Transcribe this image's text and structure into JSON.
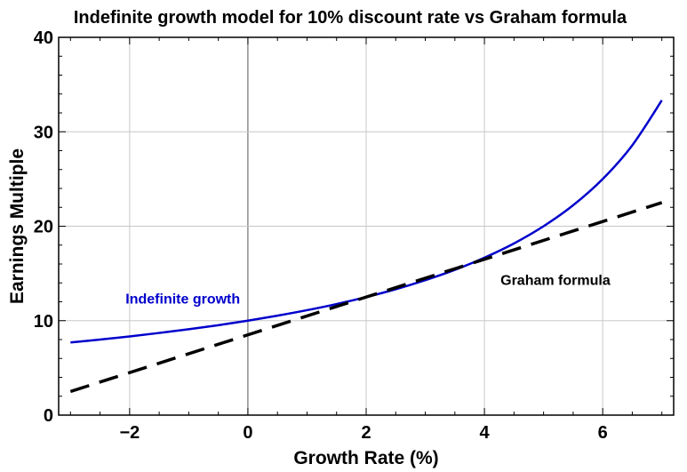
{
  "chart_data": {
    "type": "line",
    "title": "Indefinite growth model for 10% discount rate vs Graham formula",
    "xlabel": "Growth Rate (%)",
    "ylabel": "Earnings Multiple",
    "xlim": [
      -3.2,
      7.2
    ],
    "ylim": [
      0,
      40
    ],
    "x_major_ticks": [
      -2,
      0,
      2,
      4,
      6
    ],
    "y_major_ticks": [
      0,
      10,
      20,
      30,
      40
    ],
    "x_minor_step": 0.5,
    "y_minor_step": 2,
    "grid": true,
    "series": [
      {
        "name": "Indefinite growth",
        "color": "#0000cc",
        "style": "solid",
        "x": [
          -3,
          -2.5,
          -2,
          -1.5,
          -1,
          -0.5,
          0,
          0.5,
          1,
          1.5,
          2,
          2.5,
          3,
          3.5,
          4,
          4.5,
          5,
          5.5,
          6,
          6.5,
          7
        ],
        "values": [
          7.69,
          8.0,
          8.33,
          8.7,
          9.09,
          9.52,
          10.0,
          10.53,
          11.11,
          11.76,
          12.5,
          13.33,
          14.29,
          15.38,
          16.67,
          18.18,
          20.0,
          22.22,
          25.0,
          28.57,
          33.33
        ]
      },
      {
        "name": "Graham formula",
        "color": "#000000",
        "style": "dashed",
        "x": [
          -3,
          7
        ],
        "values": [
          2.5,
          22.5
        ]
      }
    ],
    "annotations": [
      {
        "text": "Indefinite growth",
        "color": "#0000cc",
        "x": -1.1,
        "y": 11.8
      },
      {
        "text": "Graham formula",
        "color": "#000000",
        "x": 5.2,
        "y": 13.8
      }
    ]
  }
}
